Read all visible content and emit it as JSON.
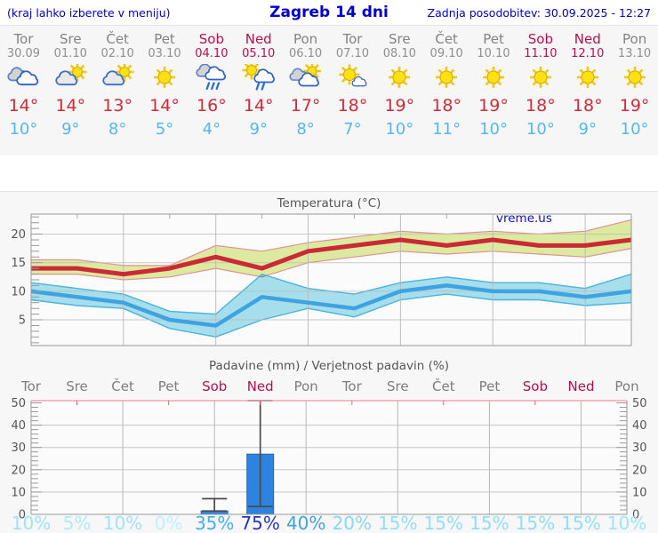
{
  "header": {
    "left_note": "(kraj lahko izberete v meniju)",
    "title": "Zagreb 14 dni",
    "updated": "Zadnja posodobitev: 30.09.2025 - 12:27"
  },
  "days": [
    {
      "name": "Tor",
      "date": "30.09",
      "weekend": false,
      "icon": "cloudy",
      "tmax": "14°",
      "tmin": "10°",
      "pop": "10%",
      "pop_color": "#9ce4fb"
    },
    {
      "name": "Sre",
      "date": "01.10",
      "weekend": false,
      "icon": "sun-cloud",
      "tmax": "14°",
      "tmin": "9°",
      "pop": "5%",
      "pop_color": "#aeeafd"
    },
    {
      "name": "Čet",
      "date": "02.10",
      "weekend": false,
      "icon": "sun-cloud",
      "tmax": "13°",
      "tmin": "8°",
      "pop": "10%",
      "pop_color": "#9ce4fb"
    },
    {
      "name": "Pet",
      "date": "03.10",
      "weekend": false,
      "icon": "sunny",
      "tmax": "14°",
      "tmin": "5°",
      "pop": "0%",
      "pop_color": "#bff0fe"
    },
    {
      "name": "Sob",
      "date": "04.10",
      "weekend": true,
      "icon": "rain",
      "tmax": "16°",
      "tmin": "4°",
      "pop": "35%",
      "pop_color": "#46b1e9"
    },
    {
      "name": "Ned",
      "date": "05.10",
      "weekend": true,
      "icon": "sun-rain",
      "tmax": "14°",
      "tmin": "9°",
      "pop": "75%",
      "pop_color": "#2b35c4"
    },
    {
      "name": "Pon",
      "date": "06.10",
      "weekend": false,
      "icon": "sun-clouds",
      "tmax": "17°",
      "tmin": "8°",
      "pop": "40%",
      "pop_color": "#3ea4e5"
    },
    {
      "name": "Tor",
      "date": "07.10",
      "weekend": false,
      "icon": "mostly-sunny",
      "tmax": "18°",
      "tmin": "7°",
      "pop": "20%",
      "pop_color": "#83d9f8"
    },
    {
      "name": "Sre",
      "date": "08.10",
      "weekend": false,
      "icon": "sunny",
      "tmax": "19°",
      "tmin": "10°",
      "pop": "15%",
      "pop_color": "#90defa"
    },
    {
      "name": "Čet",
      "date": "09.10",
      "weekend": false,
      "icon": "sunny",
      "tmax": "18°",
      "tmin": "11°",
      "pop": "15%",
      "pop_color": "#90defa"
    },
    {
      "name": "Pet",
      "date": "10.10",
      "weekend": false,
      "icon": "sunny",
      "tmax": "19°",
      "tmin": "10°",
      "pop": "15%",
      "pop_color": "#90defa"
    },
    {
      "name": "Sob",
      "date": "11.10",
      "weekend": true,
      "icon": "sunny",
      "tmax": "18°",
      "tmin": "10°",
      "pop": "15%",
      "pop_color": "#90defa"
    },
    {
      "name": "Ned",
      "date": "12.10",
      "weekend": true,
      "icon": "sunny",
      "tmax": "18°",
      "tmin": "9°",
      "pop": "15%",
      "pop_color": "#90defa"
    },
    {
      "name": "Pon",
      "date": "13.10",
      "weekend": false,
      "icon": "sunny",
      "tmax": "19°",
      "tmin": "10°",
      "pop": "10%",
      "pop_color": "#9ce4fb"
    }
  ],
  "chart_data": [
    {
      "type": "line",
      "title": "Temperatura (°C)",
      "watermark": "vreme.us",
      "categories": [
        "Tor 30.09",
        "Sre 01.10",
        "Čet 02.10",
        "Pet 03.10",
        "Sob 04.10",
        "Ned 05.10",
        "Pon 06.10",
        "Tor 07.10",
        "Sre 08.10",
        "Čet 09.10",
        "Pet 10.10",
        "Sob 11.10",
        "Ned 12.10",
        "Pon 13.10"
      ],
      "ylim": [
        0.5,
        23.5
      ],
      "yticks": [
        5,
        10,
        15,
        20
      ],
      "grid": true,
      "legend_position": "none",
      "series": [
        {
          "name": "max_temperature",
          "color": "#cc2936",
          "values": [
            14,
            14,
            13,
            14,
            16,
            14,
            17,
            18,
            19,
            18,
            19,
            18,
            18,
            19
          ]
        },
        {
          "name": "min_temperature",
          "color": "#3fa3e2",
          "values": [
            10,
            9,
            8,
            5,
            4,
            9,
            8,
            7,
            10,
            11,
            10,
            10,
            9,
            10
          ]
        },
        {
          "name": "max_range_high",
          "color": "#dcea9f",
          "values": [
            15.5,
            15.5,
            14.5,
            14.5,
            18,
            17,
            18.5,
            19.5,
            20.5,
            20,
            20.5,
            20,
            20.5,
            22.5
          ]
        },
        {
          "name": "max_range_low",
          "color": "#dcea9f",
          "values": [
            13,
            13,
            12,
            12.5,
            14,
            12.5,
            15,
            16,
            17,
            16.5,
            17,
            16.5,
            16,
            17.5
          ]
        },
        {
          "name": "min_range_high",
          "color": "#a9e2f0",
          "values": [
            11.5,
            10.5,
            9.5,
            6.5,
            6,
            13,
            10.5,
            9.5,
            11.5,
            12.5,
            11.5,
            11.5,
            10.5,
            13
          ]
        },
        {
          "name": "min_range_low",
          "color": "#a9e2f0",
          "values": [
            8.5,
            7.5,
            7,
            3.5,
            2,
            5,
            7,
            5.5,
            8.5,
            9.5,
            8.5,
            8.5,
            7.5,
            8
          ]
        }
      ]
    },
    {
      "type": "bar",
      "title": "Padavine (mm) / Verjetnost padavin (%)",
      "categories": [
        "Tor",
        "Sre",
        "Čet",
        "Pet",
        "Sob",
        "Ned",
        "Pon",
        "Tor",
        "Sre",
        "Čet",
        "Pet",
        "Sob",
        "Ned",
        "Pon"
      ],
      "values": [
        0,
        0,
        0,
        0,
        1.5,
        27,
        0,
        0,
        0,
        0,
        0,
        0,
        0,
        0
      ],
      "whiskers": [
        {
          "index": 4,
          "low": 1.5,
          "high": 7
        },
        {
          "index": 5,
          "low": 3.5,
          "high": 51
        }
      ],
      "probability_percent": [
        10,
        5,
        10,
        0,
        35,
        75,
        40,
        20,
        15,
        15,
        15,
        15,
        15,
        10
      ],
      "ylim": [
        0,
        51
      ],
      "yticks": [
        0,
        10,
        20,
        30,
        40,
        50
      ],
      "bar_color": "#2d83dd",
      "grid": true
    }
  ],
  "colors": {
    "header_blue": "#0000cd",
    "weekend": "#b5114d",
    "weekday": "#838383",
    "tmax_red": "#d22b3a",
    "tmin_blue": "#54b8f0",
    "max_line": "#cc2936",
    "min_line": "#3fa3e2",
    "max_band": "#dcea9f",
    "min_band": "#a9e2f0",
    "bar_blue": "#2d83dd"
  }
}
